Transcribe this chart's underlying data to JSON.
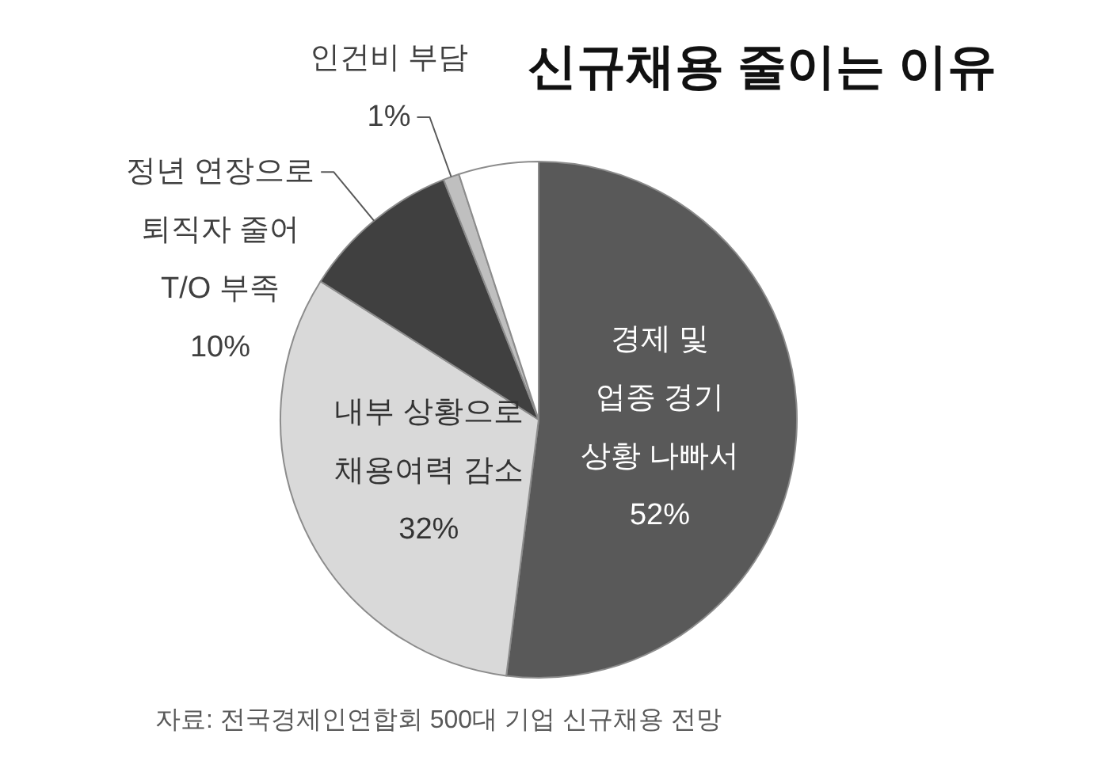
{
  "chart_data": {
    "type": "pie",
    "title": "신규채용 줄이는 이유",
    "categories": [
      "경제 및\n업종 경기\n상황 나빠서",
      "내부 상황으로\n채용여력 감소",
      "정년 연장으로\n퇴직자 줄어\nT/O 부족",
      "인건비 부담",
      null
    ],
    "values": [
      52,
      32,
      10,
      1,
      5
    ],
    "colors": [
      "#595959",
      "#d9d9d9",
      "#404040",
      "#bfbfbf",
      "#ffffff"
    ],
    "value_labels": [
      "52%",
      "32%",
      "10%",
      "1%",
      null
    ],
    "annotations": [
      "자료: 전국경제인연합회 500대 기업 신규채용 전망"
    ]
  }
}
